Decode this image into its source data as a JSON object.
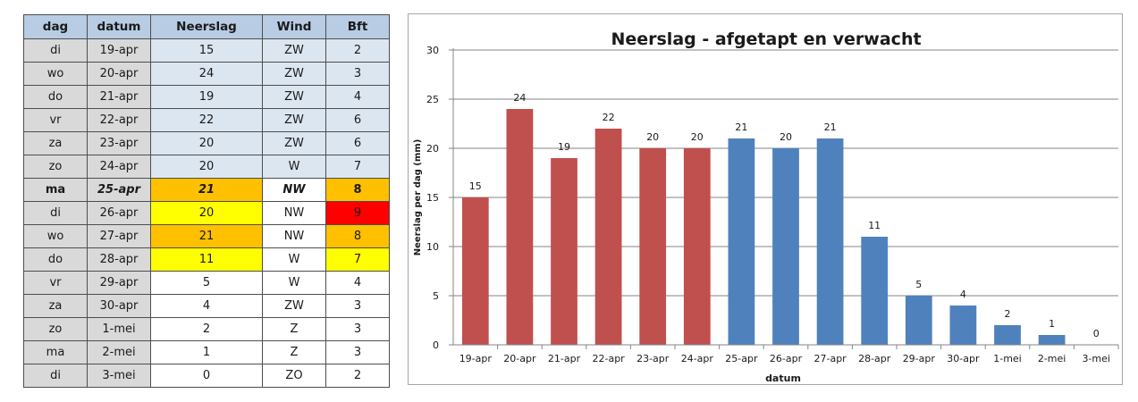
{
  "table": {
    "headers": [
      "dag",
      "datum",
      "Neerslag",
      "Wind",
      "Bft"
    ],
    "rows": [
      {
        "dag": "di",
        "datum": "19-apr",
        "neerslag": "15",
        "wind": "ZW",
        "bft": "2",
        "neer_color": "#dce6f1",
        "bft_color": "#dce6f1",
        "wind_color": "#dce6f1"
      },
      {
        "dag": "wo",
        "datum": "20-apr",
        "neerslag": "24",
        "wind": "ZW",
        "bft": "3",
        "neer_color": "#dce6f1",
        "bft_color": "#dce6f1",
        "wind_color": "#dce6f1"
      },
      {
        "dag": "do",
        "datum": "21-apr",
        "neerslag": "19",
        "wind": "ZW",
        "bft": "4",
        "neer_color": "#dce6f1",
        "bft_color": "#dce6f1",
        "wind_color": "#dce6f1"
      },
      {
        "dag": "vr",
        "datum": "22-apr",
        "neerslag": "22",
        "wind": "ZW",
        "bft": "6",
        "neer_color": "#dce6f1",
        "bft_color": "#dce6f1",
        "wind_color": "#dce6f1"
      },
      {
        "dag": "za",
        "datum": "23-apr",
        "neerslag": "20",
        "wind": "ZW",
        "bft": "6",
        "neer_color": "#dce6f1",
        "bft_color": "#dce6f1",
        "wind_color": "#dce6f1"
      },
      {
        "dag": "zo",
        "datum": "24-apr",
        "neerslag": "20",
        "wind": "W",
        "bft": "7",
        "neer_color": "#dce6f1",
        "bft_color": "#dce6f1",
        "wind_color": "#dce6f1"
      },
      {
        "dag": "ma",
        "datum": "25-apr",
        "neerslag": "21",
        "wind": "NW",
        "bft": "8",
        "neer_color": "#ffc000",
        "bft_color": "#ffc000",
        "wind_color": "#ffffff",
        "today": true
      },
      {
        "dag": "di",
        "datum": "26-apr",
        "neerslag": "20",
        "wind": "NW",
        "bft": "9",
        "neer_color": "#ffff00",
        "bft_color": "#ff0000",
        "wind_color": "#ffffff"
      },
      {
        "dag": "wo",
        "datum": "27-apr",
        "neerslag": "21",
        "wind": "NW",
        "bft": "8",
        "neer_color": "#ffc000",
        "bft_color": "#ffc000",
        "wind_color": "#ffffff"
      },
      {
        "dag": "do",
        "datum": "28-apr",
        "neerslag": "11",
        "wind": "W",
        "bft": "7",
        "neer_color": "#ffff00",
        "bft_color": "#ffff00",
        "wind_color": "#ffffff"
      },
      {
        "dag": "vr",
        "datum": "29-apr",
        "neerslag": "5",
        "wind": "W",
        "bft": "4",
        "neer_color": "#ffffff",
        "bft_color": "#ffffff",
        "wind_color": "#ffffff"
      },
      {
        "dag": "za",
        "datum": "30-apr",
        "neerslag": "4",
        "wind": "ZW",
        "bft": "3",
        "neer_color": "#ffffff",
        "bft_color": "#ffffff",
        "wind_color": "#ffffff"
      },
      {
        "dag": "zo",
        "datum": "1-mei",
        "neerslag": "2",
        "wind": "Z",
        "bft": "3",
        "neer_color": "#ffffff",
        "bft_color": "#ffffff",
        "wind_color": "#ffffff"
      },
      {
        "dag": "ma",
        "datum": "2-mei",
        "neerslag": "1",
        "wind": "Z",
        "bft": "3",
        "neer_color": "#ffffff",
        "bft_color": "#ffffff",
        "wind_color": "#ffffff"
      },
      {
        "dag": "di",
        "datum": "3-mei",
        "neerslag": "0",
        "wind": "ZO",
        "bft": "2",
        "neer_color": "#ffffff",
        "bft_color": "#ffffff",
        "wind_color": "#ffffff"
      }
    ]
  },
  "chart_data": {
    "type": "bar",
    "title": "Neerslag - afgetapt en verwacht",
    "xlabel": "datum",
    "ylabel": "Neerslag per dag (mm)",
    "ylim": [
      0,
      30
    ],
    "yticks": [
      0,
      5,
      10,
      15,
      20,
      25,
      30
    ],
    "grid": true,
    "categories": [
      "19-apr",
      "20-apr",
      "21-apr",
      "22-apr",
      "23-apr",
      "24-apr",
      "25-apr",
      "26-apr",
      "27-apr",
      "28-apr",
      "29-apr",
      "30-apr",
      "1-mei",
      "2-mei",
      "3-mei"
    ],
    "values": [
      15,
      24,
      19,
      22,
      20,
      20,
      21,
      20,
      21,
      11,
      5,
      4,
      2,
      1,
      0
    ],
    "bar_colors": [
      "#c0504d",
      "#c0504d",
      "#c0504d",
      "#c0504d",
      "#c0504d",
      "#c0504d",
      "#4f81bd",
      "#4f81bd",
      "#4f81bd",
      "#4f81bd",
      "#4f81bd",
      "#4f81bd",
      "#4f81bd",
      "#4f81bd",
      "#4f81bd"
    ],
    "grid_color": "#868686",
    "axis_color": "#868686"
  }
}
